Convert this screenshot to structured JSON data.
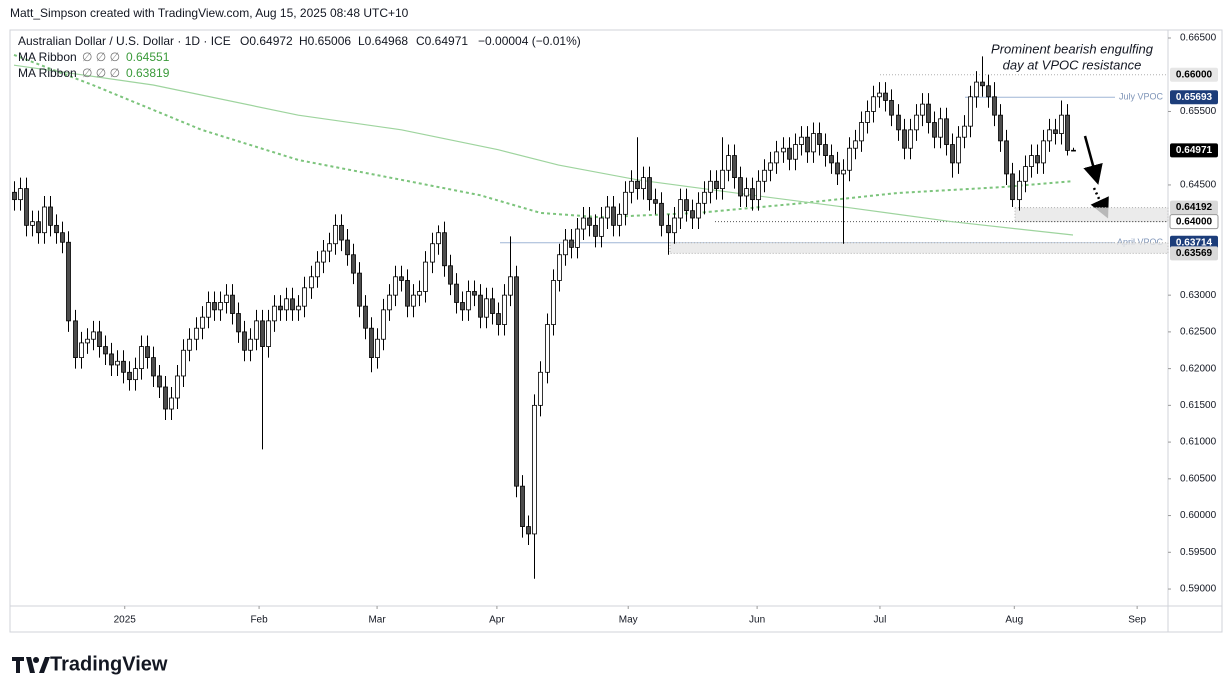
{
  "header": {
    "credit": "Matt_Simpson created with TradingView.com, Aug 15, 2025 08:48 UTC+10",
    "symbol": "Australian Dollar / U.S. Dollar · 1D · ICE",
    "ohlc": [
      "O0.64972",
      "H0.65006",
      "L0.64968",
      "C0.64971",
      "−0.00004 (−0.01%)"
    ],
    "logo": "TradingView"
  },
  "chart_data": {
    "type": "candlestick",
    "annotation": [
      "Prominent bearish engulfing",
      "day at VPOC resistance"
    ],
    "up_color": "#ffffff",
    "down_color": "#4d4d4d",
    "outline": "#000000",
    "xlim": [
      -0.66,
      190.7
    ],
    "ylim": [
      0.58769,
      0.66609
    ],
    "xticks": [
      {
        "value": 18.3,
        "label": "2025"
      },
      {
        "value": 40.5,
        "label": "Feb"
      },
      {
        "value": 60,
        "label": "Mar"
      },
      {
        "value": 79.8,
        "label": "Apr"
      },
      {
        "value": 101.5,
        "label": "May"
      },
      {
        "value": 122.8,
        "label": "Jun"
      },
      {
        "value": 143.1,
        "label": "Jul"
      },
      {
        "value": 165.3,
        "label": "Aug"
      },
      {
        "value": 185.6,
        "label": "Sep"
      }
    ],
    "yticks": [
      {
        "value": 0.665,
        "label": "0.66500"
      },
      {
        "value": 0.655,
        "label": "0.65500"
      },
      {
        "value": 0.645,
        "label": "0.64500"
      },
      {
        "value": 0.63,
        "label": "0.63000"
      },
      {
        "value": 0.625,
        "label": "0.62500"
      },
      {
        "value": 0.62,
        "label": "0.62000"
      },
      {
        "value": 0.615,
        "label": "0.61500"
      },
      {
        "value": 0.61,
        "label": "0.61000"
      },
      {
        "value": 0.605,
        "label": "0.60500"
      },
      {
        "value": 0.6,
        "label": "0.60000"
      },
      {
        "value": 0.595,
        "label": "0.59500"
      },
      {
        "value": 0.59,
        "label": "0.59000"
      }
    ],
    "last_price_label": "0.64971",
    "ma": [
      {
        "name": "MA Ribbon",
        "params": "∅ ∅ ∅",
        "value_label": "0.64551",
        "color": "#7cc47c",
        "dashed": true,
        "x": [
          0,
          13,
          31,
          47,
          64,
          77,
          87,
          97,
          113,
          130,
          146,
          163,
          175
        ],
        "values": [
          0.6627,
          0.6586,
          0.6525,
          0.6484,
          0.6457,
          0.6436,
          0.6412,
          0.6406,
          0.6412,
          0.6425,
          0.6439,
          0.6447,
          0.64551
        ]
      },
      {
        "name": "MA Ribbon",
        "params": "∅ ∅ ∅",
        "value_label": "0.63819",
        "color": "#9ed49e",
        "dashed": false,
        "x": [
          0,
          23,
          47,
          64,
          80,
          90,
          103,
          122,
          138,
          155,
          175
        ],
        "values": [
          0.6613,
          0.6586,
          0.6545,
          0.6525,
          0.6498,
          0.6477,
          0.6457,
          0.6436,
          0.6419,
          0.64,
          0.63819
        ]
      }
    ],
    "levels": [
      {
        "value": 0.66,
        "label": "0.66000",
        "style": "dotted",
        "color": "#b0b0b0",
        "tag": "#e6e6e6",
        "tag_text": "#000000"
      },
      {
        "value": 0.65693,
        "label": "0.65693",
        "name": "July VPOC",
        "style": "solid",
        "color": "#9fb5d6",
        "tag": "#1c3d7a",
        "tag_text": "#ffffff"
      },
      {
        "value": 0.64192,
        "label": "0.64192",
        "style": "zone",
        "zone_to": 0.64,
        "color": "#b0b0b0",
        "tag": "#d9d9d9",
        "tag_text": "#000000"
      },
      {
        "value": 0.64,
        "label": "0.64000",
        "style": "dotted",
        "color": "#555555",
        "tag": "#ffffff",
        "tag_text": "#000000"
      },
      {
        "value": 0.63714,
        "label": "0.63714",
        "name": "April VPOC",
        "style": "solid",
        "color": "#9fb5d6",
        "tag": "#1c3d7a",
        "tag_text": "#ffffff"
      },
      {
        "value": 0.63569,
        "label": "0.63569",
        "style": "zone",
        "zone_to": 0.63714,
        "color": "#b0b0b0",
        "tag": "#d9d9d9",
        "tag_text": "#000000"
      }
    ],
    "candles": [
      [
        0.644,
        0.6455,
        0.6415,
        0.643
      ],
      [
        0.643,
        0.646,
        0.6415,
        0.6445
      ],
      [
        0.6445,
        0.646,
        0.638,
        0.6395
      ],
      [
        0.6395,
        0.6415,
        0.638,
        0.64
      ],
      [
        0.64,
        0.6415,
        0.637,
        0.6385
      ],
      [
        0.6385,
        0.6435,
        0.637,
        0.642
      ],
      [
        0.642,
        0.6435,
        0.638,
        0.6395
      ],
      [
        0.6395,
        0.641,
        0.637,
        0.6385
      ],
      [
        0.6385,
        0.64,
        0.6357,
        0.6372
      ],
      [
        0.6372,
        0.6387,
        0.625,
        0.6265
      ],
      [
        0.6265,
        0.628,
        0.62,
        0.6215
      ],
      [
        0.6215,
        0.625,
        0.62,
        0.6235
      ],
      [
        0.6235,
        0.6255,
        0.622,
        0.624
      ],
      [
        0.624,
        0.6265,
        0.6225,
        0.625
      ],
      [
        0.625,
        0.6265,
        0.6215,
        0.623
      ],
      [
        0.623,
        0.6245,
        0.6205,
        0.622
      ],
      [
        0.622,
        0.6235,
        0.619,
        0.6205
      ],
      [
        0.6205,
        0.6225,
        0.619,
        0.621
      ],
      [
        0.621,
        0.6225,
        0.618,
        0.6195
      ],
      [
        0.6195,
        0.621,
        0.617,
        0.6185
      ],
      [
        0.6185,
        0.6215,
        0.617,
        0.62
      ],
      [
        0.62,
        0.6245,
        0.6185,
        0.623
      ],
      [
        0.623,
        0.6245,
        0.62,
        0.6215
      ],
      [
        0.6215,
        0.623,
        0.6175,
        0.619
      ],
      [
        0.619,
        0.6205,
        0.616,
        0.6175
      ],
      [
        0.6175,
        0.619,
        0.613,
        0.6145
      ],
      [
        0.6145,
        0.6175,
        0.613,
        0.616
      ],
      [
        0.616,
        0.6205,
        0.6145,
        0.619
      ],
      [
        0.619,
        0.624,
        0.6175,
        0.6225
      ],
      [
        0.6225,
        0.6255,
        0.621,
        0.624
      ],
      [
        0.624,
        0.627,
        0.6225,
        0.6255
      ],
      [
        0.6255,
        0.6285,
        0.624,
        0.627
      ],
      [
        0.627,
        0.6305,
        0.6255,
        0.629
      ],
      [
        0.629,
        0.6305,
        0.6265,
        0.628
      ],
      [
        0.628,
        0.6305,
        0.6265,
        0.629
      ],
      [
        0.629,
        0.6315,
        0.6275,
        0.63
      ],
      [
        0.63,
        0.6315,
        0.626,
        0.6275
      ],
      [
        0.6275,
        0.629,
        0.6235,
        0.625
      ],
      [
        0.625,
        0.6265,
        0.621,
        0.6225
      ],
      [
        0.6225,
        0.6255,
        0.621,
        0.624
      ],
      [
        0.624,
        0.628,
        0.6225,
        0.6265
      ],
      [
        0.6265,
        0.628,
        0.609,
        0.623
      ],
      [
        0.623,
        0.628,
        0.6215,
        0.6265
      ],
      [
        0.6265,
        0.63,
        0.625,
        0.6285
      ],
      [
        0.6285,
        0.63,
        0.6265,
        0.628
      ],
      [
        0.628,
        0.631,
        0.6265,
        0.6295
      ],
      [
        0.6295,
        0.631,
        0.6265,
        0.628
      ],
      [
        0.628,
        0.63,
        0.6265,
        0.6285
      ],
      [
        0.6285,
        0.6325,
        0.627,
        0.631
      ],
      [
        0.631,
        0.634,
        0.6295,
        0.6325
      ],
      [
        0.6325,
        0.636,
        0.631,
        0.6345
      ],
      [
        0.6345,
        0.6375,
        0.633,
        0.636
      ],
      [
        0.636,
        0.6385,
        0.6345,
        0.637
      ],
      [
        0.637,
        0.641,
        0.6355,
        0.6395
      ],
      [
        0.6395,
        0.641,
        0.636,
        0.6375
      ],
      [
        0.6375,
        0.639,
        0.634,
        0.6355
      ],
      [
        0.6355,
        0.637,
        0.6315,
        0.633
      ],
      [
        0.633,
        0.6345,
        0.627,
        0.6285
      ],
      [
        0.6285,
        0.63,
        0.624,
        0.6255
      ],
      [
        0.6255,
        0.627,
        0.6195,
        0.6215
      ],
      [
        0.6215,
        0.6255,
        0.62,
        0.624
      ],
      [
        0.624,
        0.6295,
        0.6225,
        0.628
      ],
      [
        0.628,
        0.6315,
        0.6265,
        0.63
      ],
      [
        0.63,
        0.634,
        0.6285,
        0.6325
      ],
      [
        0.6325,
        0.634,
        0.6305,
        0.632
      ],
      [
        0.632,
        0.6335,
        0.627,
        0.6285
      ],
      [
        0.6285,
        0.6315,
        0.627,
        0.63
      ],
      [
        0.63,
        0.632,
        0.6285,
        0.6305
      ],
      [
        0.6305,
        0.636,
        0.629,
        0.6345
      ],
      [
        0.6345,
        0.6385,
        0.633,
        0.637
      ],
      [
        0.637,
        0.6395,
        0.6355,
        0.6385
      ],
      [
        0.6385,
        0.64,
        0.6325,
        0.634
      ],
      [
        0.634,
        0.6355,
        0.63,
        0.6315
      ],
      [
        0.6315,
        0.633,
        0.6275,
        0.629
      ],
      [
        0.629,
        0.6305,
        0.6265,
        0.628
      ],
      [
        0.628,
        0.632,
        0.6265,
        0.6305
      ],
      [
        0.6305,
        0.632,
        0.6285,
        0.63
      ],
      [
        0.63,
        0.6315,
        0.6255,
        0.627
      ],
      [
        0.627,
        0.631,
        0.6255,
        0.6295
      ],
      [
        0.6295,
        0.631,
        0.626,
        0.6275
      ],
      [
        0.6275,
        0.629,
        0.6245,
        0.626
      ],
      [
        0.626,
        0.6315,
        0.6245,
        0.63
      ],
      [
        0.63,
        0.638,
        0.6285,
        0.6325
      ],
      [
        0.6325,
        0.634,
        0.6025,
        0.604
      ],
      [
        0.604,
        0.6055,
        0.597,
        0.5985
      ],
      [
        0.5985,
        0.6,
        0.596,
        0.5975
      ],
      [
        0.5975,
        0.6165,
        0.5914,
        0.615
      ],
      [
        0.615,
        0.621,
        0.6135,
        0.6195
      ],
      [
        0.6195,
        0.6275,
        0.618,
        0.626
      ],
      [
        0.626,
        0.6335,
        0.6245,
        0.632
      ],
      [
        0.632,
        0.637,
        0.6305,
        0.6355
      ],
      [
        0.6355,
        0.639,
        0.634,
        0.6375
      ],
      [
        0.6375,
        0.639,
        0.635,
        0.6365
      ],
      [
        0.6365,
        0.6405,
        0.635,
        0.639
      ],
      [
        0.639,
        0.642,
        0.6375,
        0.6405
      ],
      [
        0.6405,
        0.642,
        0.638,
        0.6395
      ],
      [
        0.6395,
        0.641,
        0.6365,
        0.638
      ],
      [
        0.638,
        0.642,
        0.6365,
        0.6405
      ],
      [
        0.6405,
        0.6435,
        0.639,
        0.642
      ],
      [
        0.642,
        0.6435,
        0.638,
        0.6395
      ],
      [
        0.6395,
        0.6425,
        0.638,
        0.641
      ],
      [
        0.641,
        0.6455,
        0.6395,
        0.644
      ],
      [
        0.644,
        0.647,
        0.6425,
        0.6455
      ],
      [
        0.6455,
        0.6515,
        0.643,
        0.6445
      ],
      [
        0.6445,
        0.6475,
        0.643,
        0.646
      ],
      [
        0.646,
        0.6475,
        0.6415,
        0.643
      ],
      [
        0.643,
        0.6445,
        0.641,
        0.6425
      ],
      [
        0.6425,
        0.644,
        0.638,
        0.6395
      ],
      [
        0.6395,
        0.641,
        0.6355,
        0.6385
      ],
      [
        0.6385,
        0.642,
        0.637,
        0.6405
      ],
      [
        0.6405,
        0.6445,
        0.639,
        0.643
      ],
      [
        0.643,
        0.6445,
        0.64,
        0.6415
      ],
      [
        0.6415,
        0.643,
        0.639,
        0.6405
      ],
      [
        0.6405,
        0.644,
        0.639,
        0.6425
      ],
      [
        0.6425,
        0.6455,
        0.641,
        0.644
      ],
      [
        0.644,
        0.647,
        0.6425,
        0.6455
      ],
      [
        0.6455,
        0.647,
        0.643,
        0.6445
      ],
      [
        0.6445,
        0.6515,
        0.643,
        0.647
      ],
      [
        0.647,
        0.6505,
        0.6455,
        0.649
      ],
      [
        0.649,
        0.6505,
        0.6445,
        0.646
      ],
      [
        0.646,
        0.6475,
        0.642,
        0.6435
      ],
      [
        0.6435,
        0.646,
        0.642,
        0.6445
      ],
      [
        0.6445,
        0.646,
        0.6415,
        0.643
      ],
      [
        0.643,
        0.647,
        0.6415,
        0.6455
      ],
      [
        0.6455,
        0.6485,
        0.644,
        0.647
      ],
      [
        0.647,
        0.6495,
        0.6455,
        0.648
      ],
      [
        0.648,
        0.651,
        0.6465,
        0.6495
      ],
      [
        0.6495,
        0.6515,
        0.648,
        0.65
      ],
      [
        0.65,
        0.6515,
        0.647,
        0.6485
      ],
      [
        0.6485,
        0.652,
        0.647,
        0.6505
      ],
      [
        0.6505,
        0.653,
        0.649,
        0.6515
      ],
      [
        0.6515,
        0.653,
        0.648,
        0.6495
      ],
      [
        0.6495,
        0.6535,
        0.648,
        0.652
      ],
      [
        0.652,
        0.6535,
        0.649,
        0.6505
      ],
      [
        0.6505,
        0.652,
        0.6475,
        0.649
      ],
      [
        0.649,
        0.6505,
        0.6465,
        0.648
      ],
      [
        0.648,
        0.6495,
        0.645,
        0.6465
      ],
      [
        0.6465,
        0.6485,
        0.637,
        0.647
      ],
      [
        0.647,
        0.6515,
        0.6455,
        0.65
      ],
      [
        0.65,
        0.6525,
        0.6485,
        0.651
      ],
      [
        0.651,
        0.655,
        0.6495,
        0.6535
      ],
      [
        0.6535,
        0.6565,
        0.652,
        0.655
      ],
      [
        0.655,
        0.6585,
        0.6535,
        0.657
      ],
      [
        0.657,
        0.659,
        0.6555,
        0.6575
      ],
      [
        0.6575,
        0.659,
        0.655,
        0.6565
      ],
      [
        0.6565,
        0.658,
        0.653,
        0.6545
      ],
      [
        0.6545,
        0.656,
        0.651,
        0.6525
      ],
      [
        0.6525,
        0.654,
        0.6485,
        0.65
      ],
      [
        0.65,
        0.654,
        0.6485,
        0.6525
      ],
      [
        0.6525,
        0.656,
        0.651,
        0.6545
      ],
      [
        0.6545,
        0.6575,
        0.653,
        0.656
      ],
      [
        0.656,
        0.6575,
        0.652,
        0.6535
      ],
      [
        0.6535,
        0.655,
        0.65,
        0.6515
      ],
      [
        0.6515,
        0.6555,
        0.65,
        0.654
      ],
      [
        0.654,
        0.6555,
        0.649,
        0.6505
      ],
      [
        0.6505,
        0.652,
        0.646,
        0.648
      ],
      [
        0.648,
        0.653,
        0.6465,
        0.6515
      ],
      [
        0.6515,
        0.6545,
        0.65,
        0.653
      ],
      [
        0.653,
        0.6585,
        0.6515,
        0.657
      ],
      [
        0.657,
        0.6605,
        0.6555,
        0.659
      ],
      [
        0.659,
        0.6625,
        0.657,
        0.6585
      ],
      [
        0.6585,
        0.66,
        0.6555,
        0.657
      ],
      [
        0.657,
        0.659,
        0.653,
        0.6545
      ],
      [
        0.6545,
        0.656,
        0.6495,
        0.651
      ],
      [
        0.651,
        0.6525,
        0.645,
        0.6465
      ],
      [
        0.6465,
        0.648,
        0.642,
        0.643
      ],
      [
        0.643,
        0.647,
        0.6415,
        0.6455
      ],
      [
        0.6455,
        0.649,
        0.644,
        0.6475
      ],
      [
        0.6475,
        0.6505,
        0.646,
        0.649
      ],
      [
        0.649,
        0.6505,
        0.6465,
        0.648
      ],
      [
        0.648,
        0.6525,
        0.6465,
        0.651
      ],
      [
        0.651,
        0.654,
        0.6495,
        0.6525
      ],
      [
        0.6525,
        0.654,
        0.6505,
        0.652
      ],
      [
        0.652,
        0.6565,
        0.6505,
        0.6545
      ],
      [
        0.6545,
        0.656,
        0.649,
        0.6497
      ],
      [
        0.64972,
        0.65006,
        0.64968,
        0.64971
      ]
    ]
  }
}
